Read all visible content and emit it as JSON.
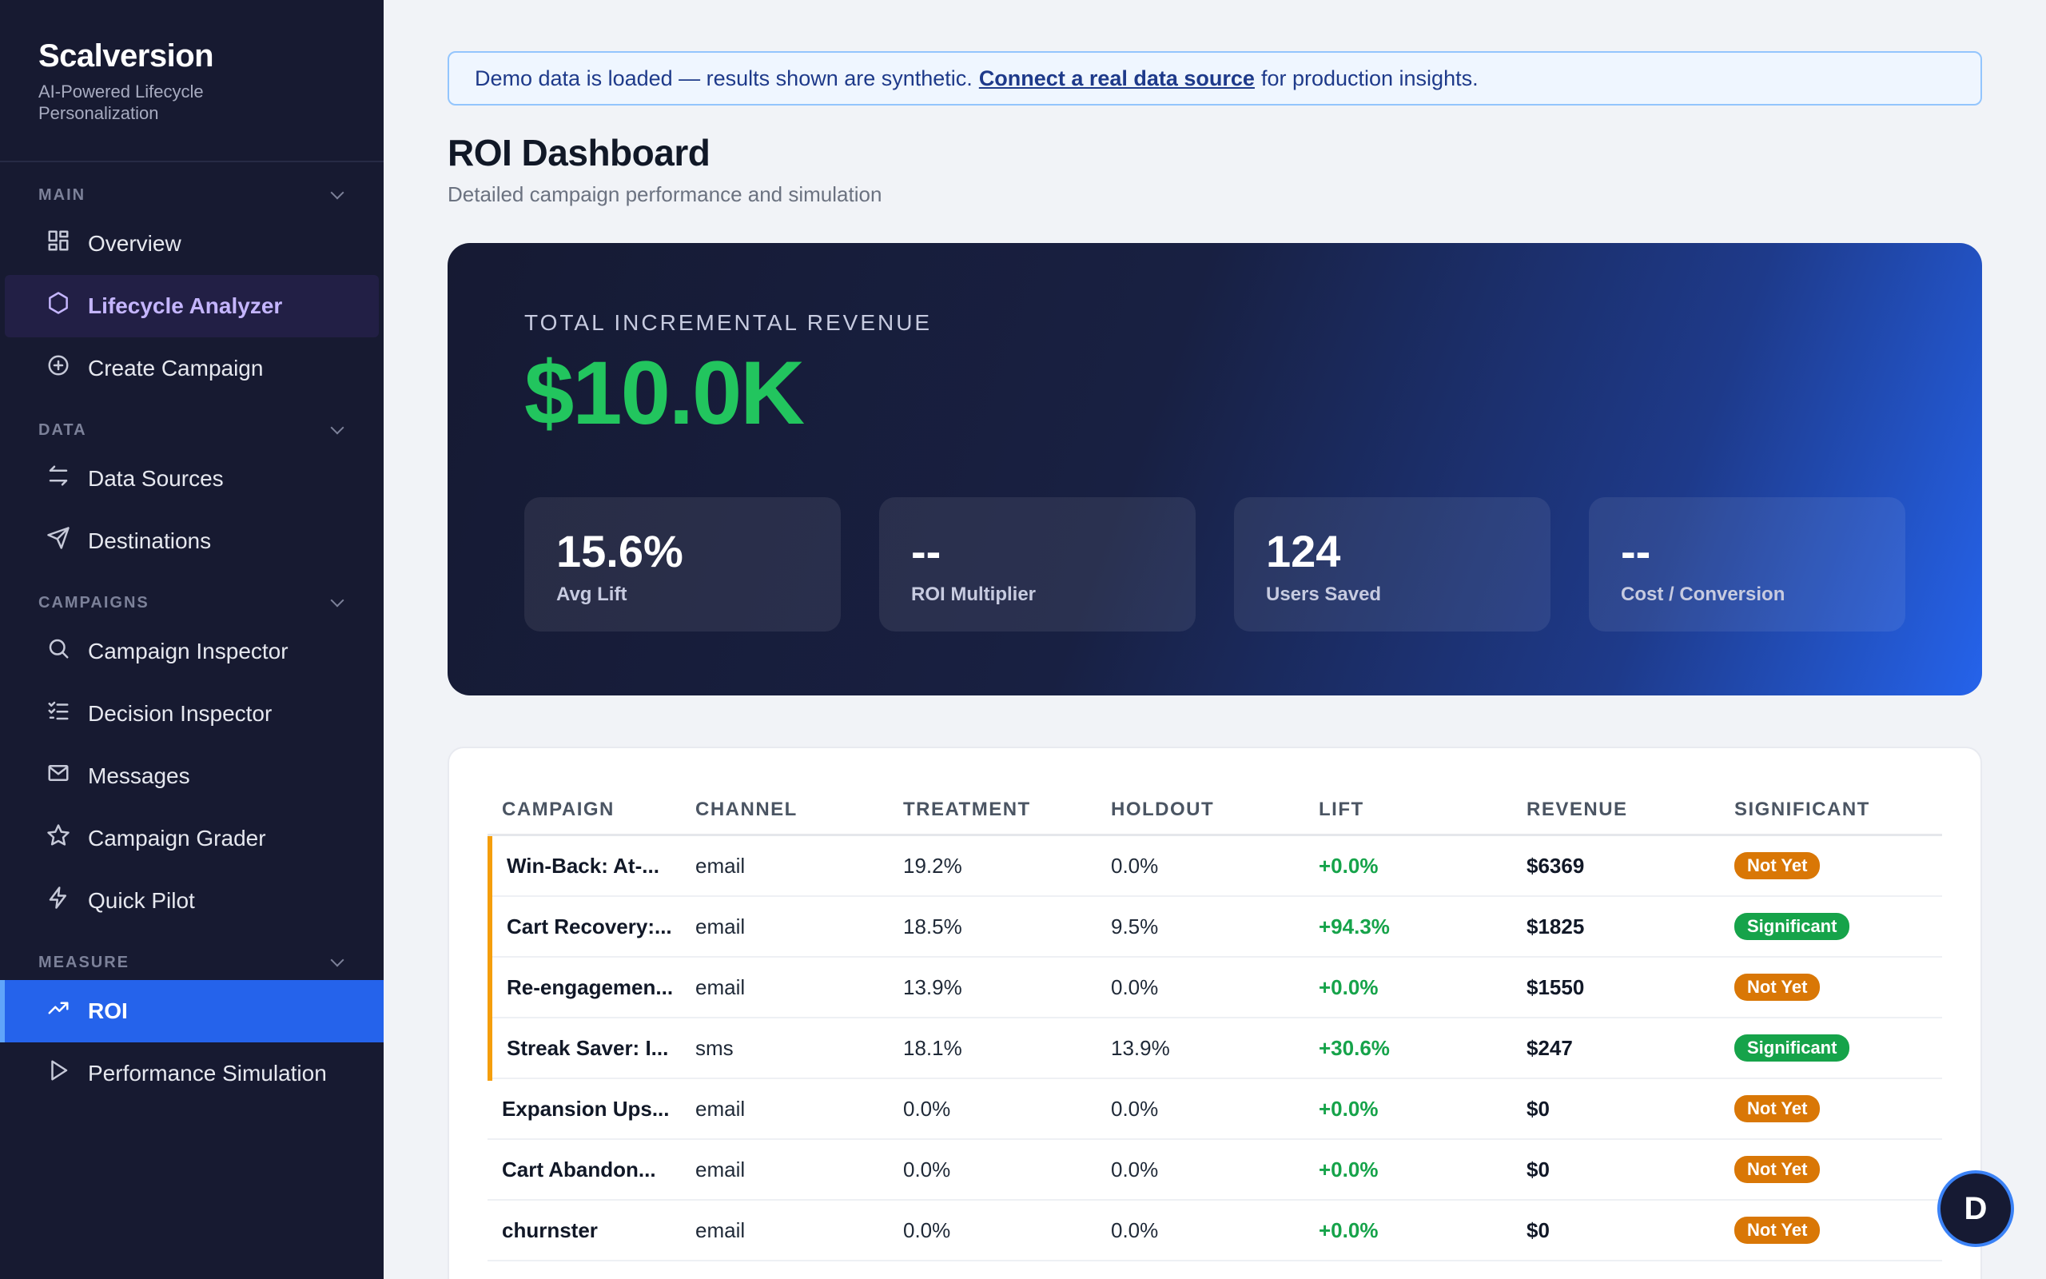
{
  "brand": {
    "name": "Scalversion",
    "tagline": "AI-Powered Lifecycle Personalization"
  },
  "sidebar": {
    "sections": [
      {
        "label": "MAIN",
        "items": [
          {
            "label": "Overview",
            "icon": "grid-icon"
          },
          {
            "label": "Lifecycle Analyzer",
            "icon": "hexagon-icon"
          },
          {
            "label": "Create Campaign",
            "icon": "plus-circle-icon"
          }
        ]
      },
      {
        "label": "DATA",
        "items": [
          {
            "label": "Data Sources",
            "icon": "arrows-swap-icon"
          },
          {
            "label": "Destinations",
            "icon": "send-icon"
          }
        ]
      },
      {
        "label": "CAMPAIGNS",
        "items": [
          {
            "label": "Campaign Inspector",
            "icon": "search-icon"
          },
          {
            "label": "Decision Inspector",
            "icon": "checklist-icon"
          },
          {
            "label": "Messages",
            "icon": "mail-icon"
          },
          {
            "label": "Campaign Grader",
            "icon": "star-icon"
          },
          {
            "label": "Quick Pilot",
            "icon": "bolt-icon"
          }
        ]
      },
      {
        "label": "MEASURE",
        "items": [
          {
            "label": "ROI",
            "icon": "trending-up-icon"
          },
          {
            "label": "Performance Simulation",
            "icon": "play-icon"
          }
        ]
      }
    ],
    "active_item": "ROI"
  },
  "banner": {
    "prefix": "Demo data is loaded — results shown are synthetic.",
    "link": "Connect a real data source",
    "suffix": "for production insights."
  },
  "page": {
    "title": "ROI Dashboard",
    "subtitle": "Detailed campaign performance and simulation"
  },
  "hero": {
    "label": "TOTAL INCREMENTAL REVENUE",
    "value": "$10.0K",
    "stats": [
      {
        "value": "15.6%",
        "label": "Avg Lift"
      },
      {
        "value": "--",
        "label": "ROI Multiplier"
      },
      {
        "value": "124",
        "label": "Users Saved"
      },
      {
        "value": "--",
        "label": "Cost / Conversion"
      }
    ]
  },
  "table": {
    "columns": [
      "CAMPAIGN",
      "CHANNEL",
      "TREATMENT",
      "HOLDOUT",
      "LIFT",
      "REVENUE",
      "SIGNIFICANT"
    ],
    "rows": [
      {
        "campaign": "Win-Back: At-...",
        "channel": "email",
        "treatment": "19.2%",
        "holdout": "0.0%",
        "lift": "+0.0%",
        "revenue": "$6369",
        "significant": "Not Yet"
      },
      {
        "campaign": "Cart Recovery:...",
        "channel": "email",
        "treatment": "18.5%",
        "holdout": "9.5%",
        "lift": "+94.3%",
        "revenue": "$1825",
        "significant": "Significant"
      },
      {
        "campaign": "Re-engagemen...",
        "channel": "email",
        "treatment": "13.9%",
        "holdout": "0.0%",
        "lift": "+0.0%",
        "revenue": "$1550",
        "significant": "Not Yet"
      },
      {
        "campaign": "Streak Saver: I...",
        "channel": "sms",
        "treatment": "18.1%",
        "holdout": "13.9%",
        "lift": "+30.6%",
        "revenue": "$247",
        "significant": "Significant"
      },
      {
        "campaign": "Expansion Ups...",
        "channel": "email",
        "treatment": "0.0%",
        "holdout": "0.0%",
        "lift": "+0.0%",
        "revenue": "$0",
        "significant": "Not Yet"
      },
      {
        "campaign": "Cart Abandon...",
        "channel": "email",
        "treatment": "0.0%",
        "holdout": "0.0%",
        "lift": "+0.0%",
        "revenue": "$0",
        "significant": "Not Yet"
      },
      {
        "campaign": "churnster",
        "channel": "email",
        "treatment": "0.0%",
        "holdout": "0.0%",
        "lift": "+0.0%",
        "revenue": "$0",
        "significant": "Not Yet"
      }
    ]
  },
  "user": {
    "initial": "D"
  },
  "colors": {
    "accent": "#2563eb",
    "success": "#16a34a",
    "warning": "#d97706",
    "sidebar": "#171a31"
  }
}
